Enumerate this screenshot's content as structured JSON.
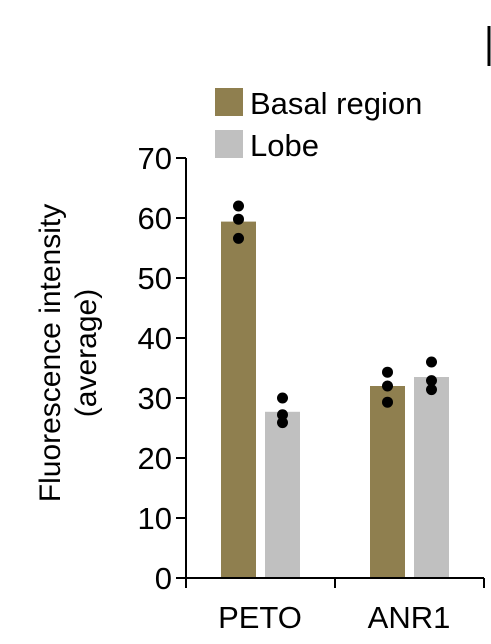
{
  "colors": {
    "basal": "#8f7f4f",
    "lobe": "#c0c0c0",
    "dot": "#000000",
    "axis": "#000000"
  },
  "chart_data": {
    "type": "bar",
    "title": "",
    "ylabel": [
      "Fluorescence intensity",
      "(average)"
    ],
    "xlabel": "",
    "ylim": [
      0,
      70
    ],
    "yticks": [
      0,
      10,
      20,
      30,
      40,
      50,
      60,
      70
    ],
    "categories": [
      "PETO",
      "ANR1"
    ],
    "legend_position": "top",
    "series": [
      {
        "name": "Basal region",
        "color": "#8f7f4f",
        "values": [
          59.4,
          32.0
        ],
        "points": [
          [
            62.0,
            59.8,
            56.6
          ],
          [
            34.3,
            32.0,
            29.3
          ]
        ]
      },
      {
        "name": "Lobe",
        "color": "#c0c0c0",
        "values": [
          27.7,
          33.5
        ],
        "points": [
          [
            30.0,
            27.2,
            25.9
          ],
          [
            36.0,
            32.9,
            31.4
          ]
        ]
      }
    ]
  }
}
